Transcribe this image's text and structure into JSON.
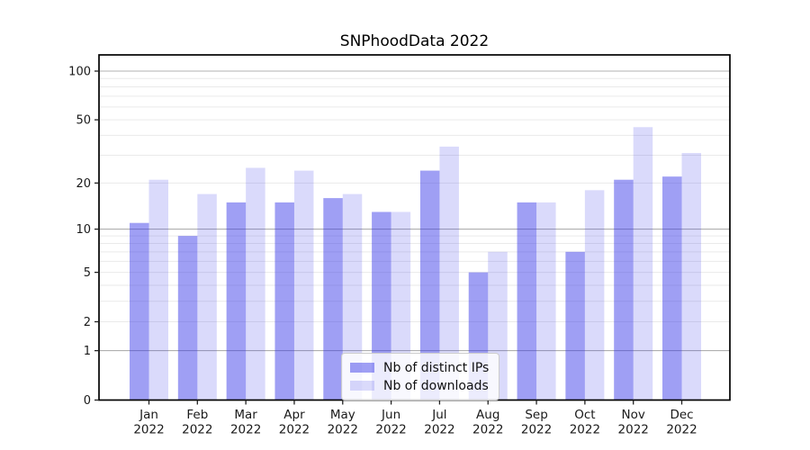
{
  "figure": {
    "title": "SNPhoodData 2022"
  },
  "chart_data": {
    "type": "bar",
    "title": "SNPhoodData 2022",
    "categories": [
      "Jan",
      "Feb",
      "Mar",
      "Apr",
      "May",
      "Jun",
      "Jul",
      "Aug",
      "Sep",
      "Oct",
      "Nov",
      "Dec"
    ],
    "year_label": "2022",
    "series": [
      {
        "name": "Nb of distinct IPs",
        "color": "rgba(51,51,232,0.47)",
        "solid_color_hex": "#9e9ef0",
        "values": [
          11,
          9,
          15,
          15,
          16,
          13,
          24,
          5,
          15,
          7,
          21,
          22
        ]
      },
      {
        "name": "Nb of downloads",
        "color": "rgba(51,51,232,0.18)",
        "solid_color_hex": "#dadaf8",
        "values": [
          21,
          17,
          25,
          24,
          17,
          13,
          34,
          7,
          15,
          18,
          45,
          31
        ]
      }
    ],
    "y_axis": {
      "scale": "log1p",
      "ticks": [
        100,
        50,
        20,
        10,
        5,
        2,
        1,
        0
      ],
      "tick_labels": [
        "100",
        "50",
        "20",
        "10",
        "5",
        "2",
        "1",
        "0"
      ],
      "major_gridlines": [
        1,
        10,
        100
      ],
      "minor_gridlines": [
        2,
        3,
        4,
        5,
        6,
        7,
        8,
        9,
        20,
        30,
        40,
        50,
        60,
        70,
        80,
        90
      ],
      "range": [
        0,
        126
      ]
    },
    "x_axis": {
      "label_format": "month over year"
    },
    "legend": {
      "position": "lower center",
      "entries": [
        "Nb of distinct IPs",
        "Nb of downloads"
      ]
    },
    "grid": true,
    "style": {
      "major_grid_color": "#b0b0b0",
      "minor_grid_color": "#eaeaea",
      "spine_color": "#000000",
      "background": "#ffffff"
    }
  }
}
